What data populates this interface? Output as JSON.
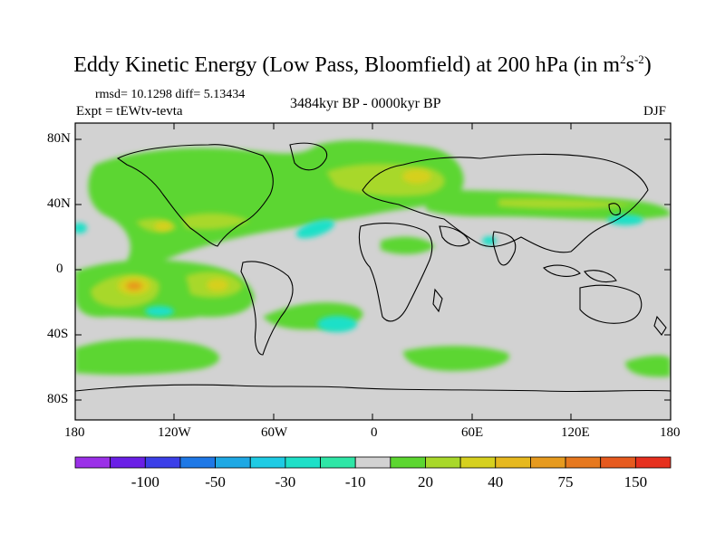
{
  "title": {
    "prefix": "Eddy Kinetic Energy (Low Pass, Bloomfield) at 200 hPa (in m",
    "sup1": "2",
    "mid": "s",
    "sup2": "-2",
    "suffix": ")"
  },
  "stats": "rmsd= 10.1298 diff= 5.13434",
  "experiment": "Expt = tEWtv-tevta",
  "period": "3484kyr BP - 0000kyr BP",
  "season": "DJF",
  "y_ticks": [
    "80N",
    "40N",
    "0",
    "40S",
    "80S"
  ],
  "x_ticks": [
    "180",
    "120W",
    "60W",
    "0",
    "60E",
    "120E",
    "180"
  ],
  "colorbar": {
    "colors": [
      "#9b30e8",
      "#6a1fe6",
      "#3b3fe8",
      "#1e78e6",
      "#1ea8e4",
      "#1ecbe4",
      "#1ee0c8",
      "#2ee6a6",
      "#d2d2d2",
      "#5cd630",
      "#a8d82a",
      "#d6d01e",
      "#e6b81e",
      "#e69a1e",
      "#e6781e",
      "#e65a1e",
      "#e6301e"
    ],
    "labels": [
      "-100",
      "-50",
      "-30",
      "-10",
      "20",
      "40",
      "75",
      "150"
    ]
  }
}
